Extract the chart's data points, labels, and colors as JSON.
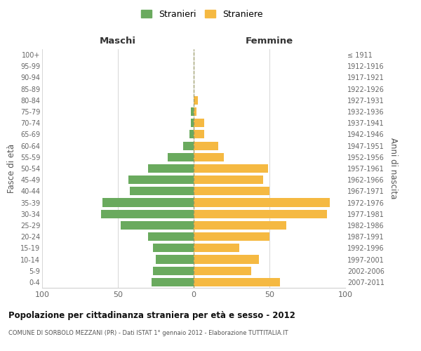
{
  "age_groups": [
    "0-4",
    "5-9",
    "10-14",
    "15-19",
    "20-24",
    "25-29",
    "30-34",
    "35-39",
    "40-44",
    "45-49",
    "50-54",
    "55-59",
    "60-64",
    "65-69",
    "70-74",
    "75-79",
    "80-84",
    "85-89",
    "90-94",
    "95-99",
    "100+"
  ],
  "birth_years": [
    "2007-2011",
    "2002-2006",
    "1997-2001",
    "1992-1996",
    "1987-1991",
    "1982-1986",
    "1977-1981",
    "1972-1976",
    "1967-1971",
    "1962-1966",
    "1957-1961",
    "1952-1956",
    "1947-1951",
    "1942-1946",
    "1937-1941",
    "1932-1936",
    "1927-1931",
    "1922-1926",
    "1917-1921",
    "1912-1916",
    "≤ 1911"
  ],
  "maschi": [
    28,
    27,
    25,
    27,
    30,
    48,
    61,
    60,
    42,
    43,
    30,
    17,
    7,
    3,
    2,
    2,
    0,
    0,
    0,
    0,
    0
  ],
  "femmine": [
    57,
    38,
    43,
    30,
    50,
    61,
    88,
    90,
    50,
    46,
    49,
    20,
    16,
    7,
    7,
    2,
    3,
    0,
    0,
    0,
    0
  ],
  "color_maschi": "#6aaa5e",
  "color_femmine": "#f5b942",
  "title": "Popolazione per cittadinanza straniera per età e sesso - 2012",
  "subtitle": "COMUNE DI SORBOLO MEZZANI (PR) - Dati ISTAT 1° gennaio 2012 - Elaborazione TUTTITALIA.IT",
  "legend_maschi": "Stranieri",
  "legend_femmine": "Straniere",
  "xlabel_left": "Maschi",
  "xlabel_right": "Femmine",
  "ylabel_left": "Fasce di età",
  "ylabel_right": "Anni di nascita",
  "xlim": 100,
  "background_color": "#ffffff",
  "grid_color": "#d0d0d0"
}
